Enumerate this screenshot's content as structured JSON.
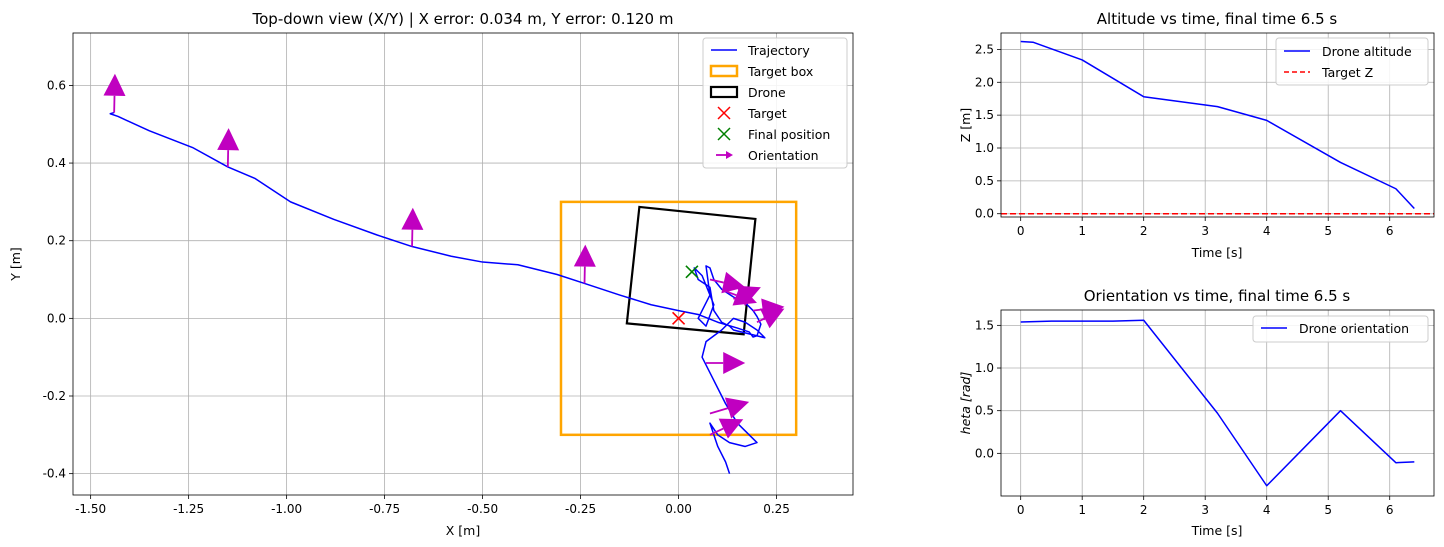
{
  "chart_data": [
    {
      "type": "line",
      "title": "Top-down view (X/Y) | X error: 0.034 m, Y error: 0.120 m",
      "xlabel": "X [m]",
      "ylabel": "Y [m]",
      "xlim": [
        -1.545,
        0.445
      ],
      "ylim": [
        -0.455,
        0.735
      ],
      "xticks": [
        "-1.50",
        "-1.25",
        "-1.00",
        "-0.75",
        "-0.50",
        "-0.25",
        "0.00",
        "0.25"
      ],
      "xtick_values": [
        -1.5,
        -1.25,
        -1.0,
        -0.75,
        -0.5,
        -0.25,
        0.0,
        0.25
      ],
      "yticks": [
        "-0.4",
        "-0.2",
        "0.0",
        "0.2",
        "0.4",
        "0.6"
      ],
      "ytick_values": [
        -0.4,
        -0.2,
        0.0,
        0.2,
        0.4,
        0.6
      ],
      "grid": true,
      "legend_position": "top-right",
      "legend": [
        "Trajectory",
        "Target box",
        "Drone",
        "Target",
        "Final position",
        "Orientation"
      ],
      "trajectory": {
        "name": "Trajectory",
        "color": "#0000ff",
        "x": [
          -1.44,
          -1.45,
          -1.43,
          -1.35,
          -1.24,
          -1.15,
          -1.08,
          -0.99,
          -0.88,
          -0.77,
          -0.68,
          -0.58,
          -0.5,
          -0.41,
          -0.31,
          -0.24,
          -0.15,
          -0.07,
          0.0,
          0.05,
          0.1,
          0.15,
          0.18,
          0.19,
          0.2,
          0.21,
          0.2,
          0.19,
          0.17,
          0.14,
          0.11,
          0.09,
          0.08,
          0.07,
          0.08,
          0.06,
          0.05,
          0.07,
          0.09,
          0.06,
          0.04,
          0.05,
          0.08,
          0.09,
          0.11,
          0.13,
          0.14,
          0.18,
          0.22,
          0.2,
          0.17,
          0.14,
          0.11,
          0.07,
          0.06,
          0.09,
          0.12,
          0.15,
          0.18,
          0.2,
          0.17,
          0.13,
          0.1,
          0.08,
          0.1,
          0.12,
          0.13
        ],
        "y": [
          0.53,
          0.527,
          0.52,
          0.483,
          0.44,
          0.39,
          0.36,
          0.3,
          0.255,
          0.215,
          0.185,
          0.16,
          0.145,
          0.138,
          0.113,
          0.09,
          0.06,
          0.035,
          0.02,
          0.01,
          -0.01,
          -0.025,
          -0.035,
          -0.048,
          -0.045,
          -0.015,
          0.005,
          0.02,
          0.04,
          0.055,
          0.075,
          0.1,
          0.13,
          0.135,
          0.06,
          0.02,
          0.0,
          -0.02,
          0.035,
          0.11,
          0.13,
          0.1,
          0.08,
          0.02,
          -0.01,
          -0.02,
          -0.03,
          -0.04,
          -0.05,
          -0.03,
          -0.01,
          0.0,
          -0.03,
          -0.06,
          -0.1,
          -0.16,
          -0.22,
          -0.27,
          -0.3,
          -0.32,
          -0.33,
          -0.32,
          -0.3,
          -0.27,
          -0.33,
          -0.37,
          -0.4
        ]
      },
      "target_box": {
        "name": "Target box",
        "color": "#ffa500",
        "x0": -0.3,
        "x1": 0.3,
        "y0": -0.3,
        "y1": 0.3
      },
      "drone_box": {
        "name": "Drone",
        "color": "#000000",
        "corners": [
          [
            -0.1,
            0.287
          ],
          [
            0.196,
            0.256
          ],
          [
            0.166,
            -0.041
          ],
          [
            -0.132,
            -0.013
          ]
        ]
      },
      "target": {
        "name": "Target",
        "color": "#ff0000",
        "x": 0.0,
        "y": 0.0
      },
      "final_position": {
        "name": "Final position",
        "color": "#008000",
        "x": 0.034,
        "y": 0.12
      },
      "orientation": {
        "name": "Orientation",
        "color": "#c000c0",
        "arrows": [
          {
            "x": -1.44,
            "y": 0.53,
            "dx": 0.002,
            "dy": 0.1
          },
          {
            "x": -1.15,
            "y": 0.39,
            "dx": 0.002,
            "dy": 0.1
          },
          {
            "x": -0.68,
            "y": 0.185,
            "dx": 0.002,
            "dy": 0.1
          },
          {
            "x": -0.24,
            "y": 0.09,
            "dx": 0.002,
            "dy": 0.1
          },
          {
            "x": 0.08,
            "y": 0.1,
            "dx": 0.09,
            "dy": -0.02
          },
          {
            "x": 0.12,
            "y": 0.07,
            "dx": 0.08,
            "dy": -0.03
          },
          {
            "x": 0.14,
            "y": 0.05,
            "dx": 0.07,
            "dy": 0.03
          },
          {
            "x": 0.19,
            "y": 0.02,
            "dx": 0.08,
            "dy": 0.01
          },
          {
            "x": 0.2,
            "y": -0.01,
            "dx": 0.07,
            "dy": 0.035
          },
          {
            "x": 0.07,
            "y": -0.115,
            "dx": 0.1,
            "dy": 0.0
          },
          {
            "x": 0.08,
            "y": -0.245,
            "dx": 0.1,
            "dy": 0.03
          },
          {
            "x": 0.08,
            "y": -0.3,
            "dx": 0.085,
            "dy": 0.04
          }
        ]
      }
    },
    {
      "type": "line",
      "title": "Altitude vs time, final time 6.5 s",
      "xlabel": "Time [s]",
      "ylabel": "Z [m]",
      "xlim": [
        -0.32,
        6.72
      ],
      "ylim": [
        -0.05,
        2.75
      ],
      "xticks": [
        "0",
        "1",
        "2",
        "3",
        "4",
        "5",
        "6"
      ],
      "xtick_values": [
        0,
        1,
        2,
        3,
        4,
        5,
        6
      ],
      "yticks": [
        "0.0",
        "0.5",
        "1.0",
        "1.5",
        "2.0",
        "2.5"
      ],
      "ytick_values": [
        0.0,
        0.5,
        1.0,
        1.5,
        2.0,
        2.5
      ],
      "grid": true,
      "legend_position": "top-right",
      "legend": [
        "Drone altitude",
        "Target Z"
      ],
      "series": [
        {
          "name": "Drone altitude",
          "color": "#0000ff",
          "style": "solid",
          "x": [
            0.0,
            0.2,
            1.0,
            2.0,
            3.2,
            4.0,
            5.2,
            6.1,
            6.4
          ],
          "y": [
            2.62,
            2.61,
            2.34,
            1.78,
            1.63,
            1.42,
            0.78,
            0.38,
            0.08
          ]
        },
        {
          "name": "Target Z",
          "color": "#ff0000",
          "style": "dashed",
          "x": [
            -0.32,
            6.72
          ],
          "y": [
            0.0,
            0.0
          ]
        }
      ]
    },
    {
      "type": "line",
      "title": "Orientation vs time, final time 6.5 s",
      "xlabel": "Time [s]",
      "ylabel": "heta [rad]",
      "xlim": [
        -0.32,
        6.72
      ],
      "ylim": [
        -0.5,
        1.68
      ],
      "xticks": [
        "0",
        "1",
        "2",
        "3",
        "4",
        "5",
        "6"
      ],
      "xtick_values": [
        0,
        1,
        2,
        3,
        4,
        5,
        6
      ],
      "yticks": [
        "0.0",
        "0.5",
        "1.0",
        "1.5"
      ],
      "ytick_values": [
        0.0,
        0.5,
        1.0,
        1.5
      ],
      "grid": true,
      "legend_position": "top-right",
      "legend": [
        "Drone orientation"
      ],
      "series": [
        {
          "name": "Drone orientation",
          "color": "#0000ff",
          "style": "solid",
          "x": [
            0.0,
            0.5,
            1.0,
            1.5,
            2.0,
            3.2,
            4.0,
            5.2,
            6.1,
            6.4
          ],
          "y": [
            1.54,
            1.55,
            1.55,
            1.55,
            1.56,
            0.47,
            -0.38,
            0.5,
            -0.11,
            -0.1
          ]
        }
      ]
    }
  ]
}
